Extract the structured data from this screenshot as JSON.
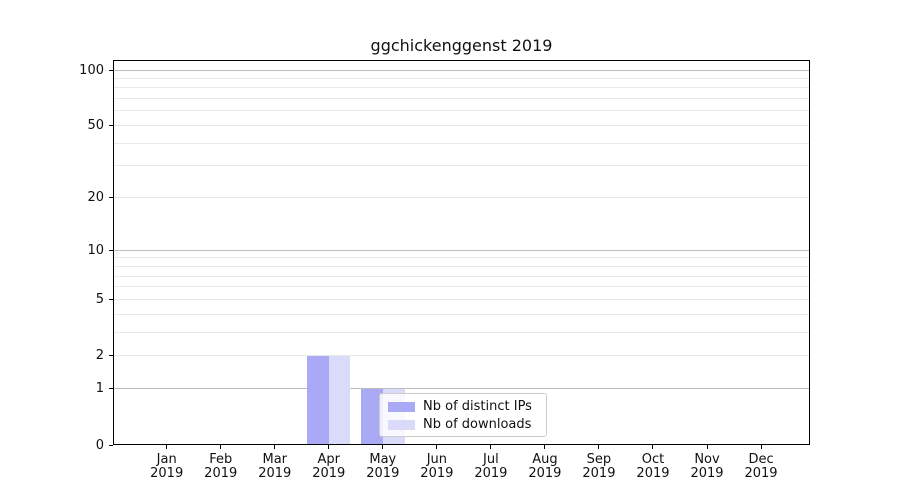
{
  "chart_data": {
    "type": "bar",
    "title": "ggchickenggenst 2019",
    "x_tick_months": [
      "Jan",
      "Feb",
      "Mar",
      "Apr",
      "May",
      "Jun",
      "Jul",
      "Aug",
      "Sep",
      "Oct",
      "Nov",
      "Dec"
    ],
    "x_tick_year": "2019",
    "categories": [
      "Jan 2019",
      "Feb 2019",
      "Mar 2019",
      "Apr 2019",
      "May 2019",
      "Jun 2019",
      "Jul 2019",
      "Aug 2019",
      "Sep 2019",
      "Oct 2019",
      "Nov 2019",
      "Dec 2019"
    ],
    "series": [
      {
        "name": "Nb of distinct IPs",
        "color": "#a9a9f6",
        "values": [
          0,
          0,
          0,
          2,
          1,
          0,
          0,
          0,
          0,
          0,
          0,
          0
        ]
      },
      {
        "name": "Nb of downloads",
        "color": "#dadaf9",
        "values": [
          0,
          0,
          0,
          2,
          1,
          0,
          0,
          0,
          0,
          0,
          0,
          0
        ]
      }
    ],
    "y_ticks": [
      0,
      1,
      2,
      5,
      10,
      20,
      50,
      100
    ],
    "y_minor_gridlines": [
      2,
      3,
      4,
      5,
      6,
      7,
      8,
      9,
      20,
      30,
      40,
      50,
      60,
      70,
      80,
      90
    ],
    "y_major_gridlines": [
      1,
      10,
      100
    ],
    "y_scale": "log1p",
    "ylim": [
      0,
      112
    ],
    "xlabel": "",
    "ylabel": "",
    "grid": "horizontal",
    "legend_position": "inside-lower-center"
  }
}
